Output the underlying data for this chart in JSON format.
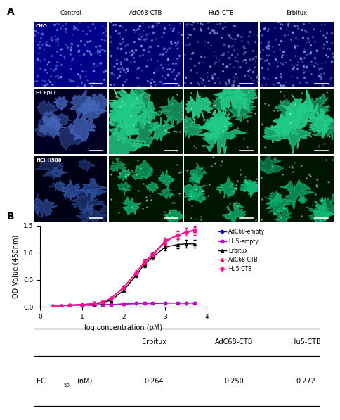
{
  "col_headers": [
    "Control",
    "AdC68-CTB",
    "Hu5-CTB",
    "Erbitux"
  ],
  "row_headers": [
    "CHO",
    "HCEpi C",
    "NCI-H508"
  ],
  "cell_configs": {
    "CHO_Control": {
      "type": "blue_dots",
      "base": "#00008B",
      "spot": "#6688DD"
    },
    "CHO_AdC68-CTB": {
      "type": "blue_dots",
      "base": "#000070",
      "spot": "#8899EE"
    },
    "CHO_Hu5-CTB": {
      "type": "blue_dots",
      "base": "#000055",
      "spot": "#7788CC"
    },
    "CHO_Erbitux": {
      "type": "blue_dots",
      "base": "#000060",
      "spot": "#7799DD"
    },
    "HCEpi C_Control": {
      "type": "blue_blobs",
      "base": "#000025",
      "spot": "#4466BB"
    },
    "HCEpi C_AdC68-CTB": {
      "type": "green_blobs",
      "base": "#001200",
      "spot": "#22CC88"
    },
    "HCEpi C_Hu5-CTB": {
      "type": "green_blobs",
      "base": "#001200",
      "spot": "#22CC88"
    },
    "HCEpi C_Erbitux": {
      "type": "green_blobs",
      "base": "#001200",
      "spot": "#22CC88"
    },
    "NCI-H508_Control": {
      "type": "blue_blobs2",
      "base": "#000015",
      "spot": "#3355AA"
    },
    "NCI-H508_AdC68-CTB": {
      "type": "green_dots2",
      "base": "#001500",
      "spot": "#11BB77"
    },
    "NCI-H508_Hu5-CTB": {
      "type": "green_dots2",
      "base": "#001500",
      "spot": "#11BB77"
    },
    "NCI-H508_Erbitux": {
      "type": "green_dots2",
      "base": "#001500",
      "spot": "#11BB77"
    }
  },
  "curves": {
    "AdC68-empty": {
      "color": "#0000CD",
      "marker": "o",
      "x": [
        0.3,
        0.5,
        0.7,
        1.0,
        1.3,
        1.5,
        1.7,
        2.0,
        2.3,
        2.5,
        2.7,
        3.0,
        3.3,
        3.5,
        3.7
      ],
      "y": [
        0.02,
        0.02,
        0.03,
        0.03,
        0.03,
        0.04,
        0.04,
        0.05,
        0.06,
        0.06,
        0.06,
        0.07,
        0.07,
        0.07,
        0.07
      ],
      "yerr": [
        0.005,
        0.005,
        0.005,
        0.005,
        0.005,
        0.005,
        0.005,
        0.005,
        0.005,
        0.005,
        0.005,
        0.005,
        0.005,
        0.005,
        0.005
      ]
    },
    "Hu5-empty": {
      "color": "#CC00CC",
      "marker": "s",
      "x": [
        0.3,
        0.5,
        0.7,
        1.0,
        1.3,
        1.5,
        1.7,
        2.0,
        2.3,
        2.5,
        2.7,
        3.0,
        3.3,
        3.5,
        3.7
      ],
      "y": [
        0.02,
        0.02,
        0.03,
        0.03,
        0.03,
        0.04,
        0.04,
        0.05,
        0.06,
        0.06,
        0.06,
        0.07,
        0.07,
        0.07,
        0.07
      ],
      "yerr": [
        0.005,
        0.005,
        0.005,
        0.005,
        0.005,
        0.005,
        0.005,
        0.005,
        0.005,
        0.005,
        0.005,
        0.005,
        0.005,
        0.005,
        0.005
      ]
    },
    "Erbitux": {
      "color": "#000000",
      "marker": "^",
      "x": [
        0.3,
        0.5,
        0.7,
        1.0,
        1.3,
        1.5,
        1.7,
        2.0,
        2.3,
        2.5,
        2.7,
        3.0,
        3.3,
        3.5,
        3.7
      ],
      "y": [
        0.02,
        0.02,
        0.03,
        0.04,
        0.05,
        0.08,
        0.12,
        0.3,
        0.58,
        0.78,
        0.92,
        1.1,
        1.15,
        1.16,
        1.16
      ],
      "yerr": [
        0.005,
        0.005,
        0.005,
        0.005,
        0.01,
        0.01,
        0.02,
        0.03,
        0.04,
        0.05,
        0.05,
        0.06,
        0.07,
        0.07,
        0.07
      ]
    },
    "AdC68-CTB": {
      "color": "#FF0066",
      "marker": "^",
      "x": [
        0.3,
        0.5,
        0.7,
        1.0,
        1.3,
        1.5,
        1.7,
        2.0,
        2.3,
        2.5,
        2.7,
        3.0,
        3.3,
        3.5,
        3.7
      ],
      "y": [
        0.02,
        0.02,
        0.03,
        0.04,
        0.06,
        0.09,
        0.15,
        0.35,
        0.62,
        0.82,
        0.95,
        1.2,
        1.32,
        1.38,
        1.4
      ],
      "yerr": [
        0.005,
        0.005,
        0.005,
        0.005,
        0.01,
        0.01,
        0.02,
        0.03,
        0.04,
        0.05,
        0.05,
        0.06,
        0.07,
        0.07,
        0.07
      ]
    },
    "Hu5-CTB": {
      "color": "#FF1493",
      "marker": "D",
      "x": [
        0.3,
        0.5,
        0.7,
        1.0,
        1.3,
        1.5,
        1.7,
        2.0,
        2.3,
        2.5,
        2.7,
        3.0,
        3.3,
        3.5,
        3.7
      ],
      "y": [
        0.02,
        0.02,
        0.03,
        0.04,
        0.06,
        0.09,
        0.16,
        0.36,
        0.63,
        0.84,
        0.97,
        1.22,
        1.33,
        1.38,
        1.42
      ],
      "yerr": [
        0.005,
        0.005,
        0.005,
        0.005,
        0.01,
        0.01,
        0.02,
        0.03,
        0.04,
        0.05,
        0.05,
        0.06,
        0.07,
        0.07,
        0.07
      ]
    }
  },
  "curve_order": [
    "AdC68-empty",
    "Hu5-empty",
    "Erbitux",
    "AdC68-CTB",
    "Hu5-CTB"
  ],
  "xlabel": "log concentration (pM)",
  "ylabel": "OD Value (450nm)",
  "xlim": [
    0,
    4
  ],
  "ylim": [
    0.0,
    1.5
  ],
  "xticks": [
    0,
    1,
    2,
    3,
    4
  ],
  "yticks": [
    0.0,
    0.5,
    1.0,
    1.5
  ],
  "table_col_headers": [
    "Erbitux",
    "AdC68-CTB",
    "Hu5-CTB"
  ],
  "table_values": [
    "0.264",
    "0.250",
    "0.272"
  ],
  "bg_color": "#FFFFFF"
}
